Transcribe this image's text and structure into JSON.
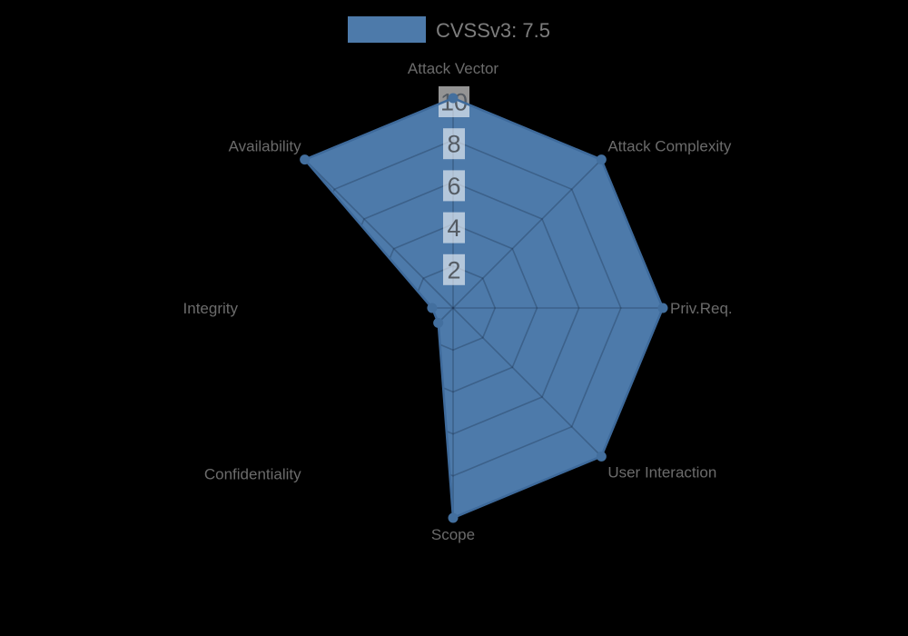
{
  "legend": {
    "label": "CVSSv3: 7.5",
    "swatch_color": "#4d7aaa"
  },
  "chart_data": {
    "type": "radar",
    "title": "CVSSv3: 7.5",
    "categories": [
      "Attack Vector",
      "Attack Complexity",
      "Priv.Req.",
      "User Interaction",
      "Scope",
      "Confidentiality",
      "Integrity",
      "Availability"
    ],
    "series": [
      {
        "name": "CVSSv3: 7.5",
        "values": [
          10,
          10,
          10,
          10,
          10,
          1,
          1,
          10
        ]
      }
    ],
    "rings": [
      2,
      4,
      6,
      8,
      10
    ],
    "tick_labels": [
      "2",
      "4",
      "6",
      "8",
      "10"
    ],
    "rmax": 10,
    "legend_position": "top-center",
    "grid": "spider-web, visible only over filled area",
    "colors": {
      "fill": "#4d7aaa",
      "outline": "#3e6a9b",
      "marker": "#436f9e",
      "grid_line": "rgba(15,30,50,0.27)",
      "axis_label": "#6b6b6b",
      "tick_text": "#545b63",
      "tick_box": "rgba(255,255,255,0.58)",
      "legend_text": "#7d7d7d",
      "background": "#000000"
    }
  }
}
